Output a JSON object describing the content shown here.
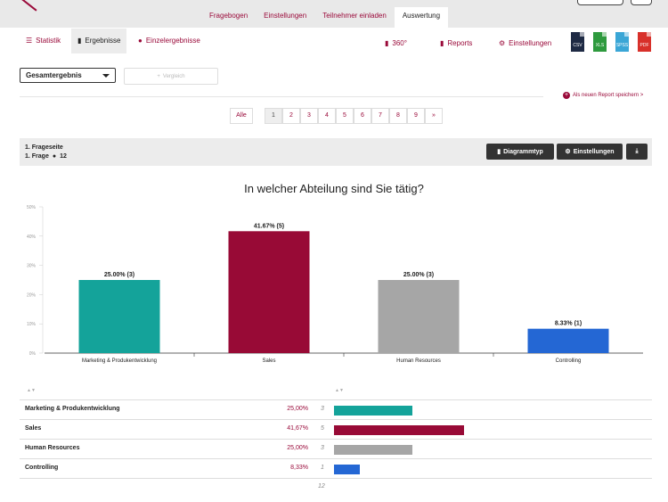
{
  "top_tabs": [
    "Fragebogen",
    "Einstellungen",
    "Teilnehmer einladen",
    "Auswertung"
  ],
  "sub_tabs": {
    "statistik": "Statistik",
    "ergebnisse": "Ergebnisse",
    "einzel": "Einzelergebnisse"
  },
  "right_links": {
    "view360": "360°",
    "reports": "Reports",
    "settings": "Einstellungen"
  },
  "exports": [
    {
      "label": "CSV",
      "color": "#1e2a44"
    },
    {
      "label": "XLS",
      "color": "#2e9a3e"
    },
    {
      "label": "SPSS",
      "color": "#3aa6d6"
    },
    {
      "label": "PDF",
      "color": "#d8302a"
    }
  ],
  "filter": {
    "selected": "Gesamtergebnis",
    "compare_label": "Vergleich"
  },
  "save_report": "Als neuen Report speichern >",
  "pager": {
    "all": "Alle",
    "pages": [
      "1",
      "2",
      "3",
      "4",
      "5",
      "6",
      "7",
      "8",
      "9"
    ],
    "next": "»",
    "active": "1"
  },
  "question": {
    "page": "1. Frageseite",
    "label": "1. Frage",
    "respondents": "12"
  },
  "buttons": {
    "chart_type": "Diagrammtyp",
    "settings": "Einstellungen"
  },
  "accent": "#9a0a3a",
  "chart_data": {
    "type": "bar",
    "title": "In welcher Abteilung sind Sie tätig?",
    "categories": [
      "Marketing & Produkentwicklung",
      "Sales",
      "Human Resources",
      "Controlling"
    ],
    "values": [
      25.0,
      41.67,
      25.0,
      8.33
    ],
    "counts": [
      3,
      5,
      3,
      1
    ],
    "data_labels": [
      "25.00% (3)",
      "41.67% (5)",
      "25.00% (3)",
      "8.33% (1)"
    ],
    "colors": [
      "#14a39a",
      "#980a36",
      "#a6a6a6",
      "#2467d4"
    ],
    "ylim": [
      0,
      50
    ],
    "yticks": [
      "0%",
      "10%",
      "20%",
      "30%",
      "40%",
      "50%"
    ],
    "grid": false
  },
  "table": {
    "rows": [
      {
        "name": "Marketing & Produkentwicklung",
        "pct": "25,00%",
        "count": "3"
      },
      {
        "name": "Sales",
        "pct": "41,67%",
        "count": "5"
      },
      {
        "name": "Human Resources",
        "pct": "25,00%",
        "count": "3"
      },
      {
        "name": "Controlling",
        "pct": "8,33%",
        "count": "1"
      }
    ],
    "total": "12"
  }
}
